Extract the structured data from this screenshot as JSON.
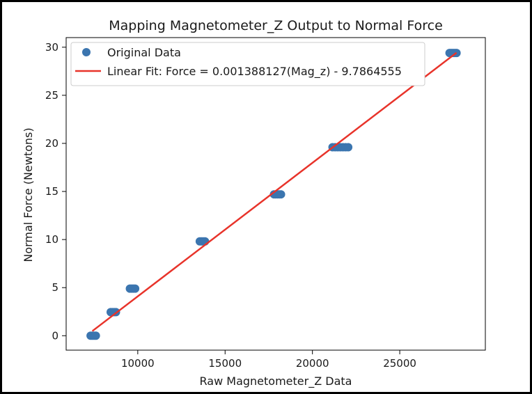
{
  "chart_data": {
    "type": "scatter",
    "title": "Mapping Magnetometer_Z Output to Normal Force",
    "xlabel": "Raw Magnetometer_Z Data",
    "ylabel": "Normal Force (Newtons)",
    "xlim": [
      5900,
      29900
    ],
    "ylim": [
      -1.5,
      31.0
    ],
    "xticks": [
      {
        "value": 10000,
        "label": "10000"
      },
      {
        "value": 15000,
        "label": "15000"
      },
      {
        "value": 20000,
        "label": "20000"
      },
      {
        "value": 25000,
        "label": "25000"
      }
    ],
    "yticks": [
      {
        "value": 0,
        "label": "0"
      },
      {
        "value": 5,
        "label": "5"
      },
      {
        "value": 10,
        "label": "10"
      },
      {
        "value": 15,
        "label": "15"
      },
      {
        "value": 20,
        "label": "20"
      },
      {
        "value": 25,
        "label": "25"
      },
      {
        "value": 30,
        "label": "30"
      }
    ],
    "grid": false,
    "legend_position": "top-left",
    "series": [
      {
        "name": "Original Data",
        "kind": "scatter",
        "color": "#3b75af",
        "points": [
          {
            "x": 7300,
            "y": 0
          },
          {
            "x": 7400,
            "y": 0
          },
          {
            "x": 7500,
            "y": 0
          },
          {
            "x": 7600,
            "y": 0
          },
          {
            "x": 8450,
            "y": 2.45
          },
          {
            "x": 8550,
            "y": 2.45
          },
          {
            "x": 8650,
            "y": 2.45
          },
          {
            "x": 8750,
            "y": 2.45
          },
          {
            "x": 9550,
            "y": 4.9
          },
          {
            "x": 9650,
            "y": 4.9
          },
          {
            "x": 9750,
            "y": 4.9
          },
          {
            "x": 9850,
            "y": 4.9
          },
          {
            "x": 13550,
            "y": 9.81
          },
          {
            "x": 13650,
            "y": 9.81
          },
          {
            "x": 13750,
            "y": 9.81
          },
          {
            "x": 13850,
            "y": 9.81
          },
          {
            "x": 17800,
            "y": 14.7
          },
          {
            "x": 17900,
            "y": 14.7
          },
          {
            "x": 18000,
            "y": 14.7
          },
          {
            "x": 18100,
            "y": 14.7
          },
          {
            "x": 18200,
            "y": 14.7
          },
          {
            "x": 21150,
            "y": 19.6
          },
          {
            "x": 21300,
            "y": 19.6
          },
          {
            "x": 21450,
            "y": 19.6
          },
          {
            "x": 21600,
            "y": 19.6
          },
          {
            "x": 21750,
            "y": 19.6
          },
          {
            "x": 21900,
            "y": 19.6
          },
          {
            "x": 22050,
            "y": 19.6
          },
          {
            "x": 27850,
            "y": 29.4
          },
          {
            "x": 27950,
            "y": 29.4
          },
          {
            "x": 28050,
            "y": 29.4
          },
          {
            "x": 28150,
            "y": 29.4
          },
          {
            "x": 28250,
            "y": 29.4
          }
        ]
      },
      {
        "name": "Linear Fit: Force = 0.001388127(Mag_z) - 9.7864555",
        "kind": "line",
        "color": "#e8332a",
        "slope": 0.001388127,
        "intercept": -9.7864555,
        "x_range": [
          7400,
          28250
        ]
      }
    ]
  }
}
